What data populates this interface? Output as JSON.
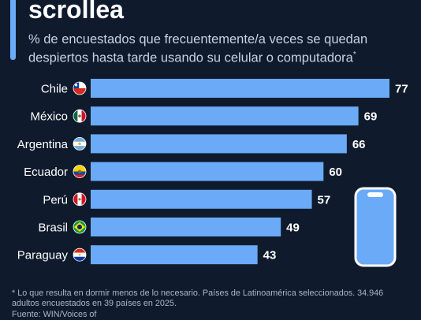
{
  "header": {
    "title": "scrollea",
    "subtitle": "% de encuestados que frecuentemente/a veces se quedan despiertos hasta tarde usando su celular o computadora",
    "subtitle_mark": "*"
  },
  "footer": {
    "footnote": "* Lo que resulta en dormir menos de lo necesario. Países de Latinoamérica seleccionados. 34.946 adultos encuestados en 39 países en 2025.",
    "source": "Fuente: WIN/Voices of"
  },
  "colors": {
    "background": "#0f1b2d",
    "bar": "#6aaaf7",
    "text": "#ffffff",
    "muted": "#c8d2e0"
  },
  "icons": [
    "flag-chile-icon",
    "flag-mexico-icon",
    "flag-argentina-icon",
    "flag-ecuador-icon",
    "flag-peru-icon",
    "flag-brasil-icon",
    "flag-paraguay-icon",
    "smartphone-icon"
  ],
  "chart_data": {
    "type": "bar",
    "orientation": "horizontal",
    "categories": [
      "Chile",
      "México",
      "Argentina",
      "Ecuador",
      "Perú",
      "Brasil",
      "Paraguay"
    ],
    "values": [
      77,
      69,
      66,
      60,
      57,
      49,
      43
    ],
    "xlim": [
      0,
      77
    ],
    "grid": false,
    "legend": "none"
  }
}
